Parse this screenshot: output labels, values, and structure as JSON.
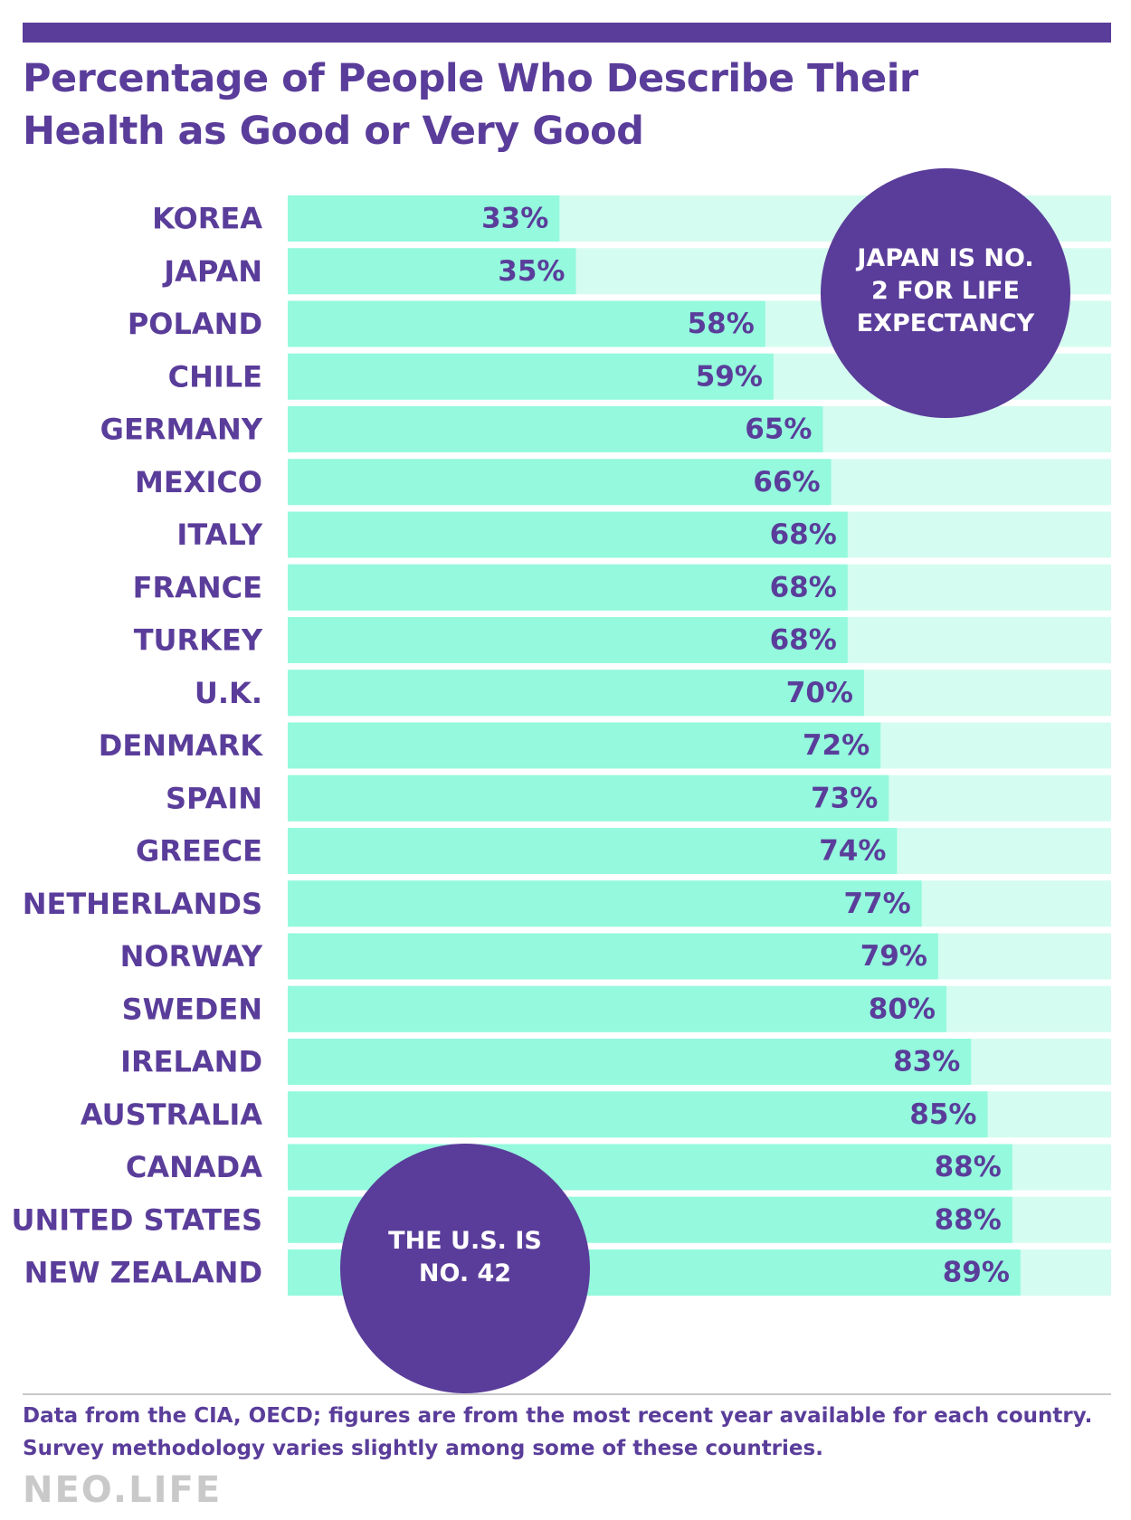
{
  "title": "Percentage of People Who Describe Their Health as Good or Very Good",
  "colors": {
    "accent": "#5a3d9a",
    "bar": "#94f9dd",
    "track": "#d5fcf0",
    "logo": "#c9c9c9"
  },
  "chart_data": {
    "type": "bar",
    "orientation": "horizontal",
    "title": "Percentage of People Who Describe Their Health as Good or Very Good",
    "xlim": [
      0,
      100
    ],
    "value_suffix": "%",
    "categories": [
      "KOREA",
      "JAPAN",
      "POLAND",
      "CHILE",
      "GERMANY",
      "MEXICO",
      "ITALY",
      "FRANCE",
      "TURKEY",
      "U.K.",
      "DENMARK",
      "SPAIN",
      "GREECE",
      "NETHERLANDS",
      "NORWAY",
      "SWEDEN",
      "IRELAND",
      "AUSTRALIA",
      "CANADA",
      "UNITED STATES",
      "NEW ZEALAND"
    ],
    "values": [
      33,
      35,
      58,
      59,
      65,
      66,
      68,
      68,
      68,
      70,
      72,
      73,
      74,
      77,
      79,
      80,
      83,
      85,
      88,
      88,
      89
    ],
    "value_labels": [
      "33%",
      "35%",
      "58%",
      "59%",
      "65%",
      "66%",
      "68%",
      "68%",
      "68%",
      "70%",
      "72%",
      "73%",
      "74%",
      "77%",
      "79%",
      "80%",
      "83%",
      "85%",
      "88%",
      "88%",
      "89%"
    ],
    "annotations": [
      "JAPAN IS NO. 2 FOR LIFE EXPECTANCY",
      "THE U.S. IS NO. 42"
    ],
    "grid": false,
    "legend": "none"
  },
  "callouts": {
    "japan": "JAPAN IS NO. 2 FOR LIFE EXPECTANCY",
    "us": "THE U.S. IS NO. 42"
  },
  "footer": {
    "note_1": "Data from the CIA, OECD; figures are from the most recent year available for each country.",
    "note_2": "Survey methodology varies slightly among some of these countries.",
    "logo": "NEO.LIFE"
  }
}
